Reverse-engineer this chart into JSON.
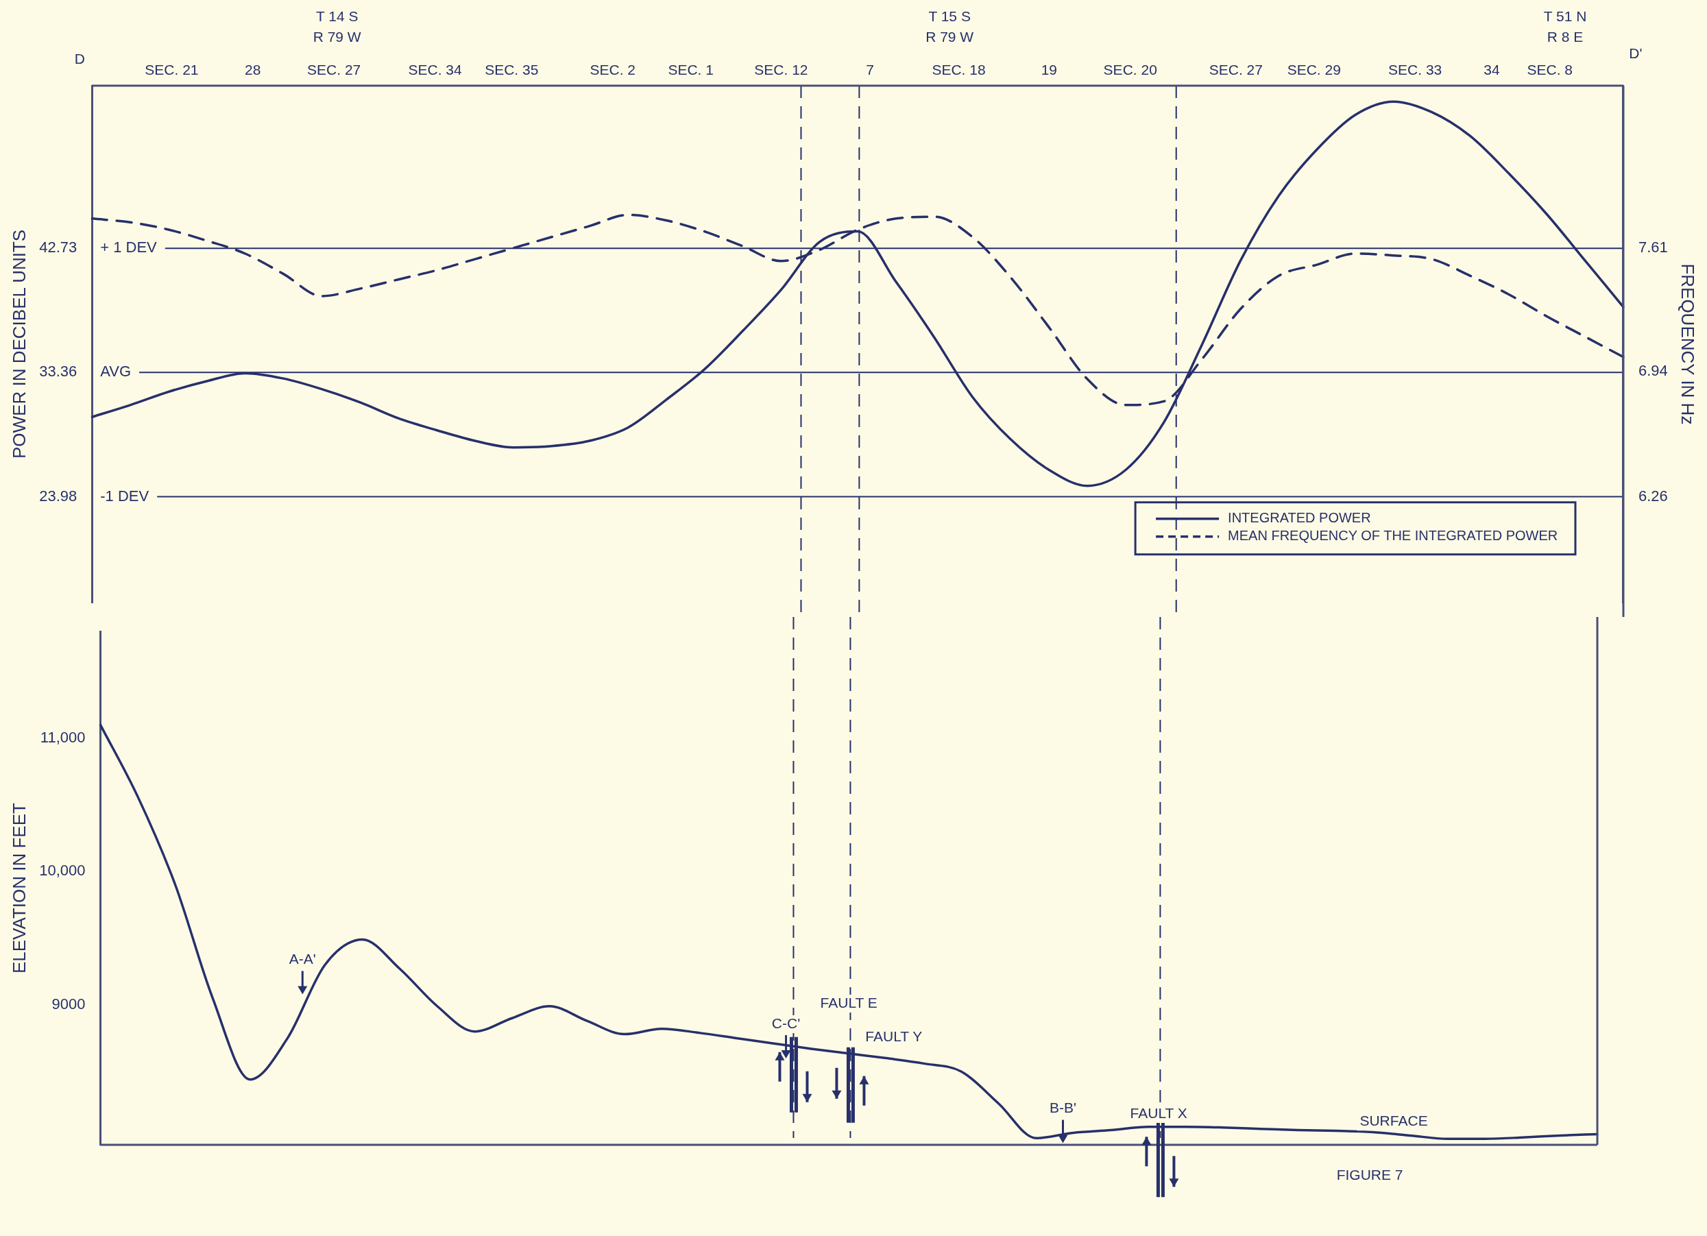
{
  "chart_data": [
    {
      "type": "line",
      "ylabel": "POWER IN DECIBEL UNITS",
      "y2label": "FREQUENCY IN Hz",
      "categories": [
        null,
        null,
        null,
        null,
        null,
        null,
        null,
        null,
        null,
        null,
        null,
        null,
        null,
        null,
        null,
        null,
        null,
        null,
        null,
        null,
        null,
        null,
        null,
        null,
        null,
        null,
        null,
        null,
        null,
        null,
        null,
        null,
        null,
        null,
        null,
        null,
        null,
        null,
        null,
        null,
        null
      ],
      "ylim": [
        16,
        55
      ],
      "y2lim": [
        5.69,
        8.49
      ],
      "yticks": [
        42.73,
        33.36,
        23.98
      ],
      "ref_lines": [
        {
          "axis": "y",
          "value": 42.73,
          "label": "+ 1 DEV"
        },
        {
          "axis": "y",
          "value": 33.36,
          "label": "AVG"
        },
        {
          "axis": "y",
          "value": 23.98,
          "label": "-1 DEV"
        }
      ],
      "y2ticks": [
        7.61,
        6.94,
        6.26
      ],
      "legend": "bottom right",
      "series": [
        {
          "name": "INTEGRATED POWER",
          "color": "#27306b",
          "line_style": "solid",
          "values": [
            30.0,
            30.9,
            31.9,
            32.7,
            33.3,
            32.9,
            32.1,
            31.1,
            29.9,
            29.0,
            28.2,
            27.7,
            27.8,
            28.2,
            29.2,
            31.3,
            33.6,
            36.5,
            39.6,
            43.2,
            44.0,
            40.2,
            36.0,
            31.5,
            28.3,
            26.0,
            24.8,
            26.0,
            29.6,
            35.5,
            41.8,
            46.7,
            50.2,
            52.8,
            53.8,
            53.0,
            51.2,
            48.4,
            45.3,
            41.8,
            38.3
          ]
        },
        {
          "name": "MEAN FREQUENCY OF THE INTEGRATED POWER",
          "color": "#27306b",
          "line_style": "dashed",
          "axis": "y2",
          "values": [
            7.77,
            7.75,
            7.71,
            7.65,
            7.58,
            7.47,
            7.35,
            7.39,
            7.44,
            7.49,
            7.55,
            7.61,
            7.67,
            7.73,
            7.79,
            7.76,
            7.7,
            7.62,
            7.54,
            7.6,
            7.71,
            7.77,
            7.78,
            7.67,
            7.45,
            7.18,
            6.9,
            6.76,
            6.78,
            7.01,
            7.28,
            7.46,
            7.52,
            7.58,
            7.57,
            7.55,
            7.46,
            7.36,
            7.24,
            7.13,
            7.02
          ]
        }
      ],
      "annotations": [
        "D",
        "T 14 S",
        "R 79 W",
        "T 15 S",
        "R 79 W",
        "T 51 N",
        "R 8 E",
        "D'",
        "SEC. 21",
        "28",
        "SEC. 27",
        "SEC. 34",
        "SEC. 35",
        "SEC. 2",
        "SEC. 1",
        "SEC. 12",
        "7",
        "SEC. 18",
        "19",
        "SEC. 20",
        "SEC. 27",
        "SEC. 29",
        "SEC. 33",
        "34",
        "SEC. 8"
      ]
    },
    {
      "type": "line",
      "ylabel": "ELEVATION IN FEET",
      "categories": [
        null,
        null,
        null,
        null,
        null,
        null,
        null,
        null,
        null,
        null,
        null,
        null,
        null,
        null,
        null,
        null,
        null,
        null,
        null,
        null,
        null,
        null,
        null,
        null,
        null,
        null,
        null,
        null,
        null,
        null,
        null,
        null,
        null,
        null,
        null,
        null,
        null,
        null,
        null,
        null,
        null
      ],
      "ylim": [
        7950,
        11800
      ],
      "yticks": [
        {
          "value": 11000,
          "label": "11,000"
        },
        {
          "value": 10000,
          "label": "10,000"
        },
        9000
      ],
      "series": [
        {
          "color": "#27306b",
          "values": [
            11100,
            10560,
            9900,
            9050,
            8440,
            8750,
            9300,
            9490,
            9270,
            8990,
            8800,
            8900,
            8990,
            8880,
            8780,
            8820,
            8790,
            8750,
            8710,
            8670,
            8635,
            8600,
            8560,
            8500,
            8260,
            8000,
            8040,
            8060,
            8085,
            8085,
            8080,
            8070,
            8060,
            8055,
            8045,
            8020,
            7995,
            7995,
            8005,
            8020,
            8030
          ]
        }
      ],
      "annotations": [
        "A-A'",
        "C-C'",
        "FAULT E",
        "FAULT Y",
        "B-B'",
        "FAULT X",
        "SURFACE",
        "FIGURE 7"
      ]
    }
  ]
}
